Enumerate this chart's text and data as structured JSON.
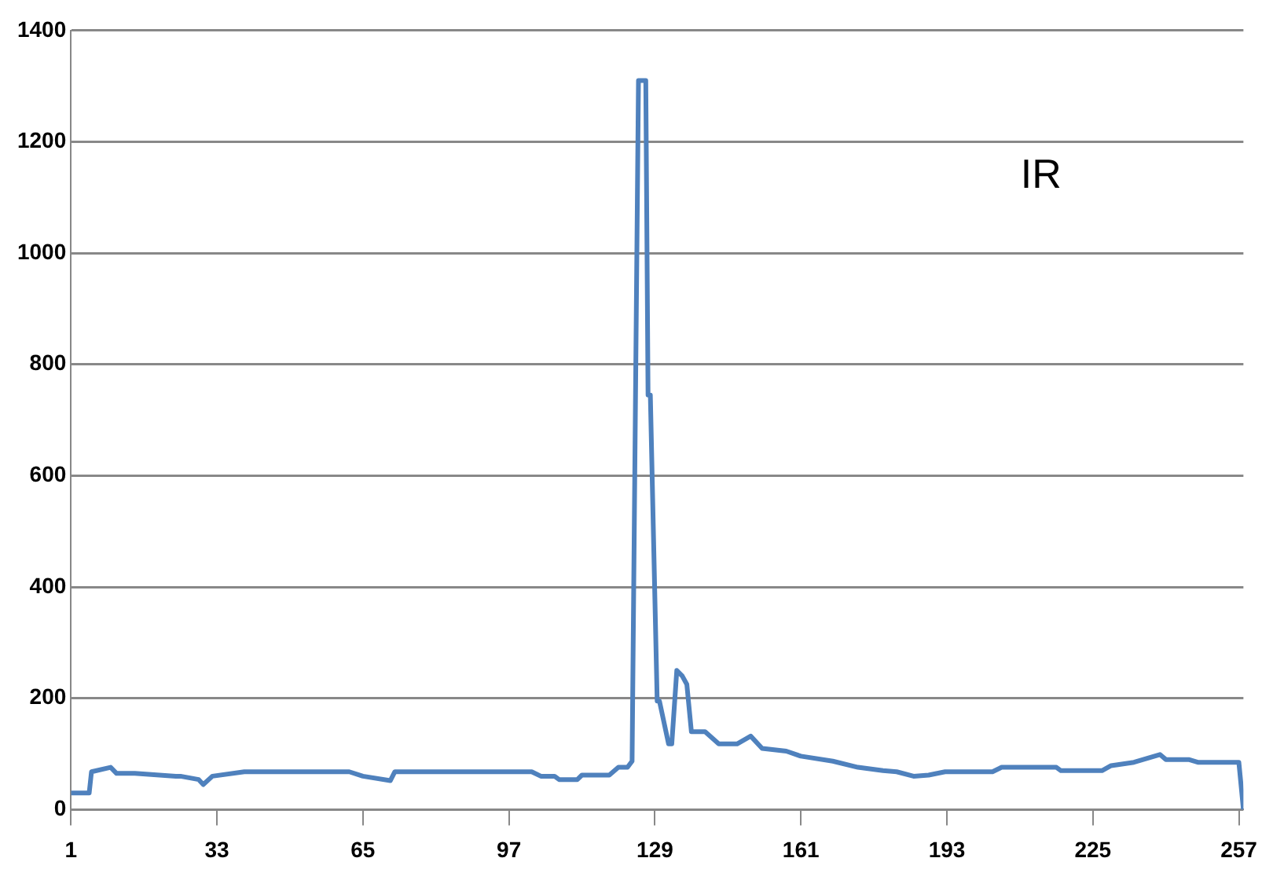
{
  "chart_data": {
    "type": "line",
    "annotations": [
      "IR"
    ],
    "xlim": [
      1,
      258
    ],
    "xticks": [
      1,
      33,
      65,
      97,
      129,
      161,
      193,
      225,
      257
    ],
    "ylim": [
      0,
      1400
    ],
    "yticks": [
      0,
      200,
      400,
      600,
      800,
      1000,
      1200,
      1400
    ],
    "grid": "y",
    "legend": false,
    "marker": "none",
    "series": [
      {
        "color": "#4f81bd",
        "x": [
          1,
          5,
          5.5,
          9.7,
          11,
          15,
          24,
          25,
          29,
          30,
          32,
          39,
          62,
          65,
          71,
          72,
          102,
          104,
          107,
          108,
          112,
          113,
          119,
          121,
          123,
          124,
          125.4,
          126,
          127,
          127.5,
          128,
          129.5,
          130,
          132,
          132.7,
          133.8,
          135,
          136,
          137,
          140,
          143,
          147,
          150,
          152.5,
          157.8,
          161,
          168,
          173.5,
          179,
          182,
          185.7,
          189,
          192.6,
          203,
          205,
          217,
          218,
          227,
          229,
          234,
          239.7,
          241,
          246,
          248,
          257,
          258
        ],
        "values": [
          30,
          30,
          68,
          76,
          65,
          65,
          60,
          60,
          54,
          45,
          60,
          68,
          68,
          60,
          52,
          68,
          68,
          60,
          60,
          54,
          54,
          62,
          62,
          76,
          76,
          87,
          1310,
          1310,
          1310,
          745,
          745,
          195,
          195,
          118,
          118,
          250,
          240,
          225,
          140,
          140,
          118,
          118,
          132,
          110,
          105,
          96,
          87,
          76,
          70,
          68,
          60,
          62,
          68,
          68,
          76,
          76,
          70,
          70,
          79,
          85,
          99,
          90,
          90,
          85,
          85,
          0
        ]
      }
    ]
  }
}
